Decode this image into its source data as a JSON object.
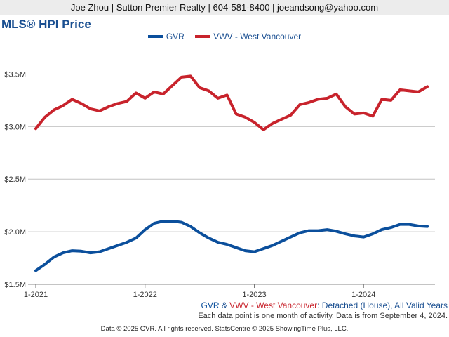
{
  "header": {
    "contact": "Joe Zhou | Sutton Premier Realty | 604-581-8400 | joeandsong@yahoo.com"
  },
  "colors": {
    "gvr": "#0b4f9c",
    "vwv": "#c8232c",
    "text_blue": "#1a4f91",
    "grid": "#c4c4c4"
  },
  "chart_data": {
    "type": "line",
    "title": "MLS® HPI Price",
    "y_ticks": [
      {
        "value": 1500000,
        "label": "$1.5M"
      },
      {
        "value": 2000000,
        "label": "$2.0M"
      },
      {
        "value": 2500000,
        "label": "$2.5M"
      },
      {
        "value": 3000000,
        "label": "$3.0M"
      },
      {
        "value": 3500000,
        "label": "$3.5M"
      }
    ],
    "ylim": [
      1500000,
      3750000
    ],
    "x_ticks": [
      "1-2021",
      "1-2022",
      "1-2023",
      "1-2024"
    ],
    "x_start": "1-2021",
    "x_end": "8-2024",
    "legend_position": "top",
    "grid": "horizontal",
    "series": [
      {
        "name": "GVR",
        "color": "#0b4f9c",
        "values": [
          1630000,
          1690000,
          1760000,
          1800000,
          1820000,
          1815000,
          1800000,
          1810000,
          1840000,
          1870000,
          1900000,
          1940000,
          2020000,
          2080000,
          2100000,
          2100000,
          2090000,
          2050000,
          1990000,
          1940000,
          1900000,
          1880000,
          1850000,
          1820000,
          1810000,
          1840000,
          1870000,
          1910000,
          1950000,
          1990000,
          2010000,
          2010000,
          2020000,
          2005000,
          1980000,
          1960000,
          1950000,
          1980000,
          2020000,
          2040000,
          2070000,
          2070000,
          2055000,
          2050000
        ]
      },
      {
        "name": "VWV - West Vancouver",
        "color": "#c8232c",
        "values": [
          2980000,
          3090000,
          3160000,
          3200000,
          3260000,
          3220000,
          3170000,
          3150000,
          3190000,
          3220000,
          3240000,
          3320000,
          3270000,
          3330000,
          3310000,
          3390000,
          3470000,
          3480000,
          3370000,
          3340000,
          3270000,
          3300000,
          3120000,
          3090000,
          3040000,
          2970000,
          3030000,
          3070000,
          3110000,
          3210000,
          3230000,
          3260000,
          3270000,
          3310000,
          3190000,
          3120000,
          3130000,
          3100000,
          3260000,
          3250000,
          3350000,
          3340000,
          3330000,
          3380000
        ]
      }
    ]
  },
  "caption": {
    "gvr": "GVR",
    "amp": " & ",
    "vwv": "VWV - West Vancouver",
    "rest": ": Detached (House), All Valid Years"
  },
  "note": "Each data point is one month of activity. Data is from September 4, 2024.",
  "footer": "Data © 2025 GVR. All rights reserved. StatsCentre © 2025 ShowingTime Plus, LLC."
}
